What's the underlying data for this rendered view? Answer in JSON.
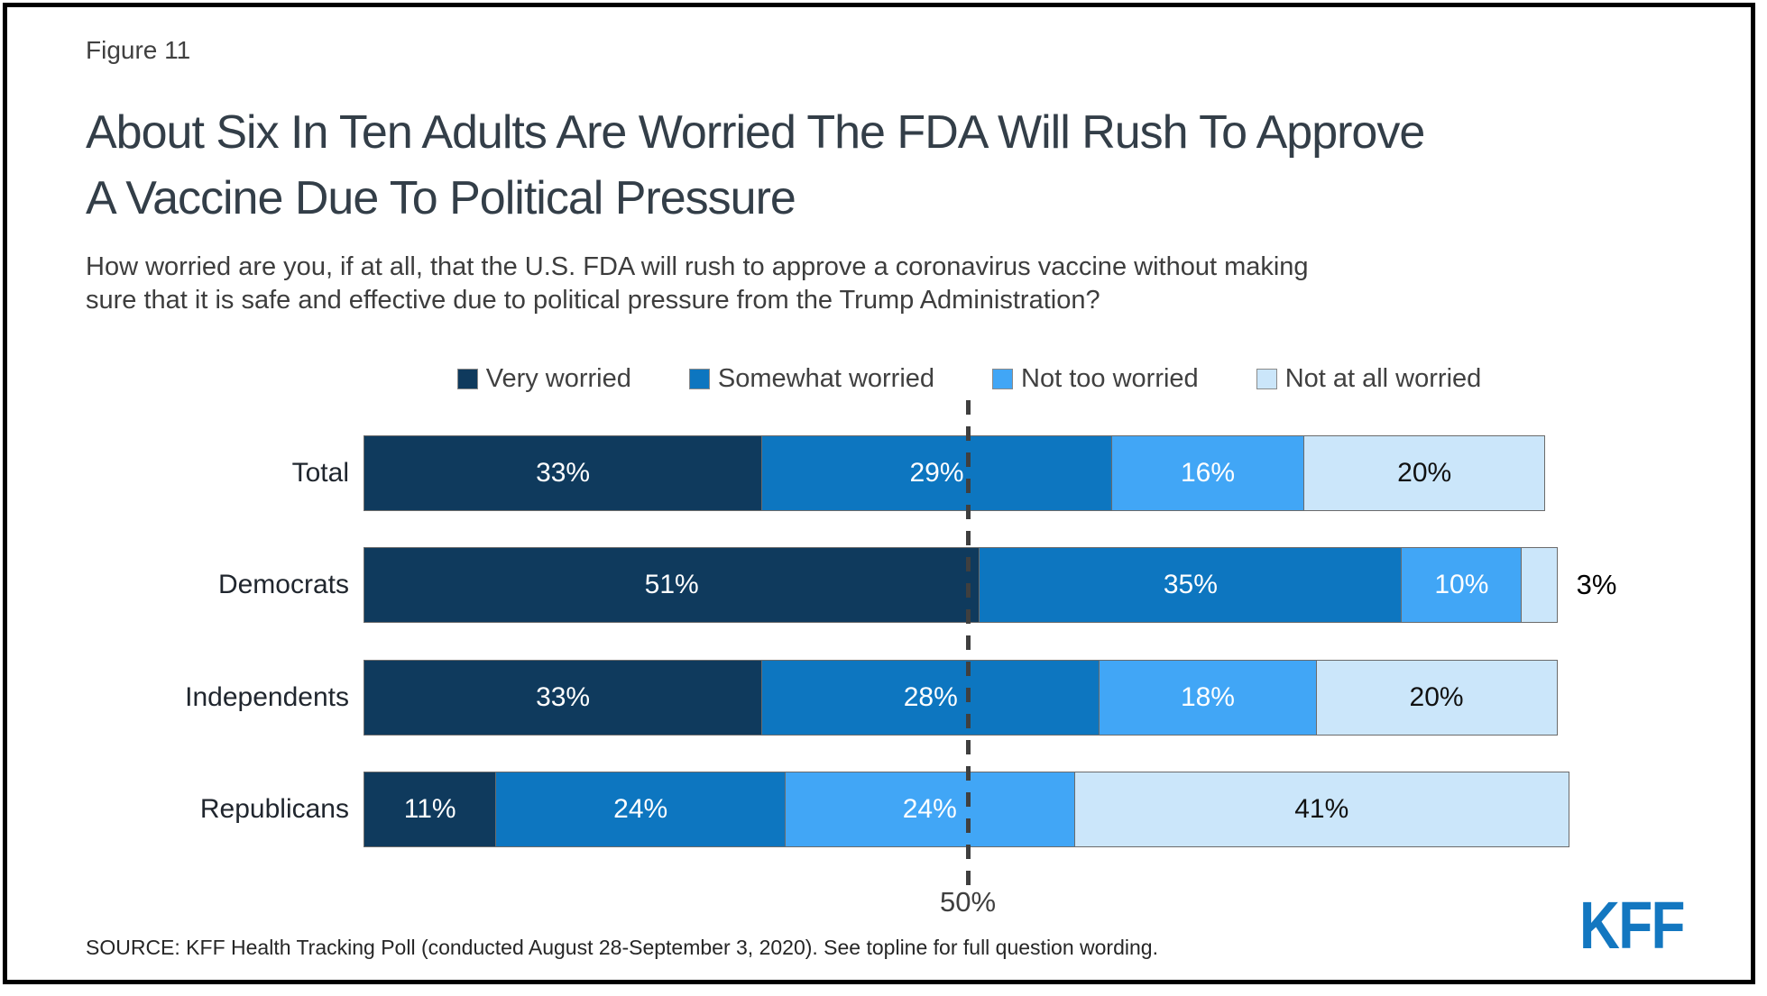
{
  "figure": {
    "label": "Figure 11"
  },
  "header": {
    "title_line1": "About Six In Ten Adults Are Worried The FDA Will Rush To Approve",
    "title_line2": "A Vaccine Due To Political Pressure",
    "subtitle_line1": "How worried are you, if at all, that the U.S. FDA will rush to approve a coronavirus vaccine without making",
    "subtitle_line2": "sure that it is safe and effective due to political pressure from the Trump Administration?"
  },
  "chart_data": {
    "type": "bar",
    "orientation": "horizontal",
    "stacked": true,
    "title": "About Six In Ten Adults Are Worried The FDA Will Rush To Approve A Vaccine Due To Political Pressure",
    "categories": [
      "Total",
      "Democrats",
      "Independents",
      "Republicans"
    ],
    "series": [
      {
        "name": "Very worried",
        "color": "#0f3a5d",
        "label_color": "#ffffff",
        "values": [
          33,
          51,
          33,
          11
        ]
      },
      {
        "name": "Somewhat worried",
        "color": "#0d76c0",
        "label_color": "#ffffff",
        "values": [
          29,
          35,
          28,
          24
        ]
      },
      {
        "name": "Not too worried",
        "color": "#41a6f6",
        "label_color": "#ffffff",
        "values": [
          16,
          10,
          18,
          24
        ]
      },
      {
        "name": "Not at all worried",
        "color": "#cbe6fa",
        "label_color": "#111111",
        "values": [
          20,
          3,
          20,
          41
        ]
      }
    ],
    "value_suffix": "%",
    "xlim": [
      0,
      100
    ],
    "gridline": {
      "value": 50,
      "label": "50%"
    },
    "legend_position": "top",
    "grid": false
  },
  "footer": {
    "source": "SOURCE: KFF Health Tracking Poll (conducted August 28-September 3, 2020). See topline for full question wording.",
    "logo_text": "KFF"
  }
}
